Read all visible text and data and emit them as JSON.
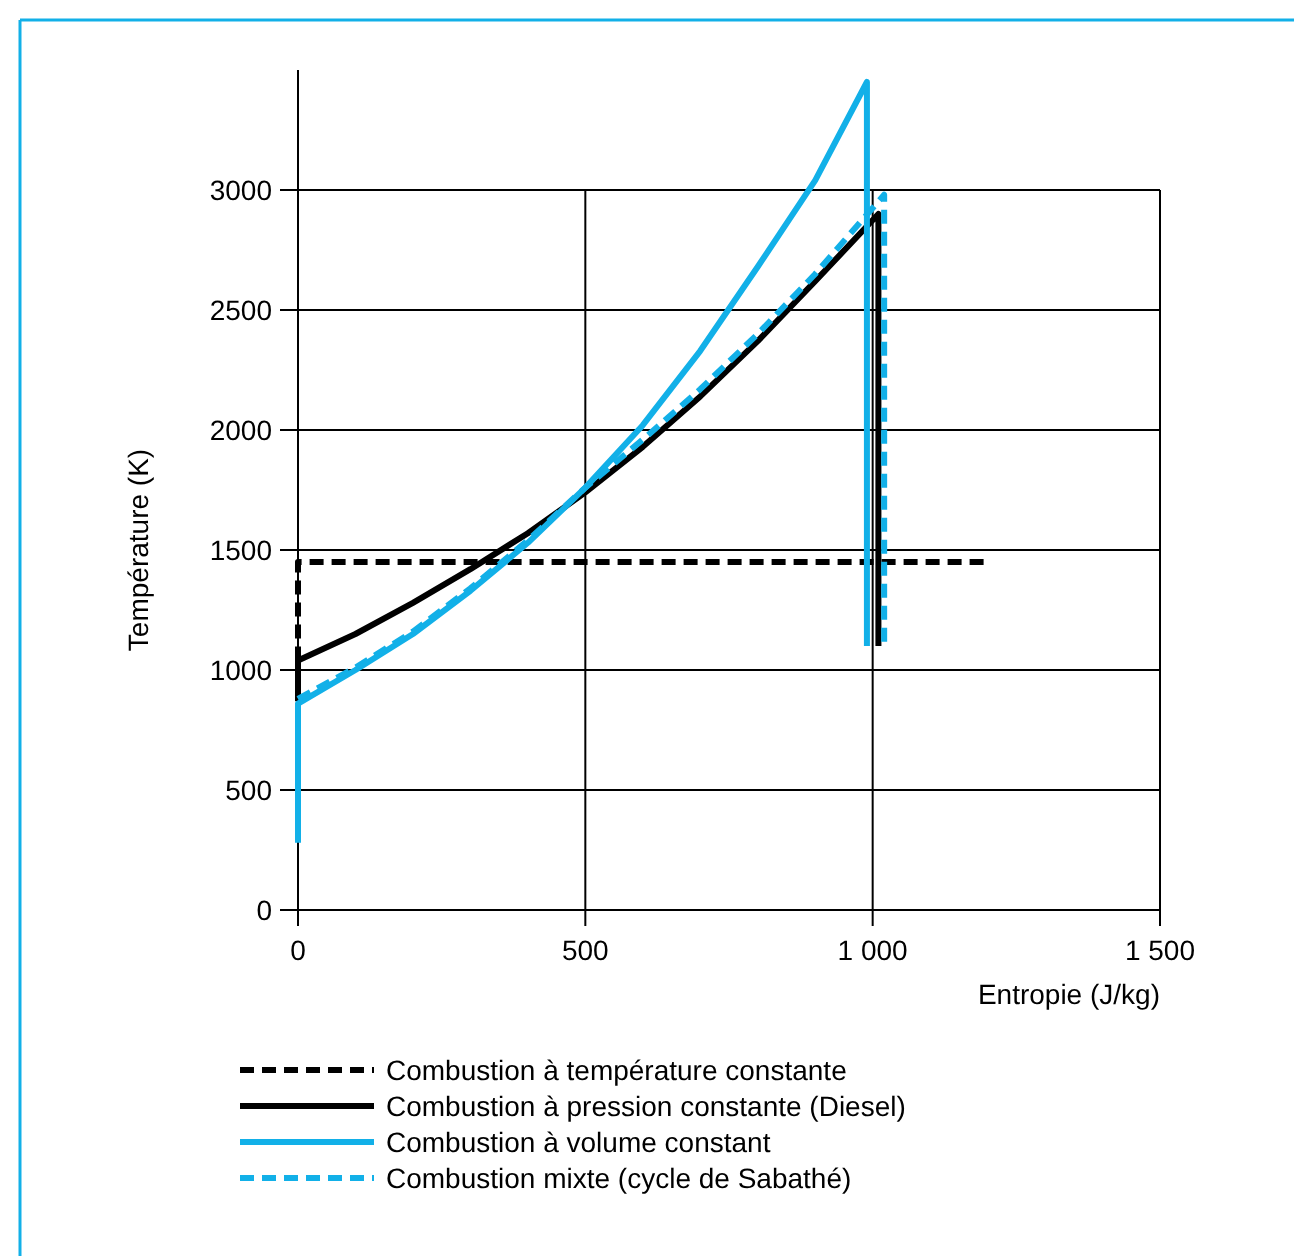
{
  "chart_data": {
    "type": "line",
    "xlabel": "Entropie (J/kg)",
    "ylabel": "Température (K)",
    "xlim": [
      0,
      1500
    ],
    "ylim": [
      0,
      3500
    ],
    "xticks": [
      0,
      500,
      {
        "value": 1000,
        "label": "1 000"
      },
      {
        "value": 1500,
        "label": "1 500"
      }
    ],
    "yticks": [
      0,
      500,
      1000,
      1500,
      2000,
      2500,
      3000
    ],
    "grid": true,
    "legend": "bottom",
    "marker": "none",
    "series": [
      {
        "name": "Combustion à température constante",
        "color": "#000000",
        "line_style": "dashed",
        "x": [
          0,
          0,
          1200
        ],
        "values": [
          1040,
          1450,
          1450
        ]
      },
      {
        "name": "Combustion à pression constante (Diesel)",
        "color": "#000000",
        "line_style": "solid",
        "x": [
          0,
          0,
          100,
          200,
          300,
          400,
          500,
          600,
          700,
          800,
          900,
          1010,
          1010
        ],
        "values": [
          870,
          1040,
          1150,
          1280,
          1420,
          1570,
          1740,
          1930,
          2140,
          2370,
          2620,
          2900,
          1100
        ]
      },
      {
        "name": "Combustion à volume constant",
        "color": "#12b0e8",
        "line_style": "solid",
        "x": [
          0,
          0,
          100,
          200,
          300,
          400,
          500,
          600,
          700,
          800,
          900,
          990,
          990
        ],
        "values": [
          280,
          860,
          1000,
          1150,
          1330,
          1530,
          1760,
          2020,
          2330,
          2680,
          3040,
          3450,
          1100
        ]
      },
      {
        "name": "Combustion mixte (cycle de Sabathé)",
        "color": "#12b0e8",
        "line_style": "dashed",
        "x": [
          0,
          100,
          200,
          300,
          400,
          500,
          600,
          700,
          800,
          900,
          1020,
          1020
        ],
        "values": [
          880,
          1010,
          1160,
          1340,
          1540,
          1760,
          1960,
          2170,
          2400,
          2650,
          2980,
          1100
        ]
      }
    ]
  }
}
